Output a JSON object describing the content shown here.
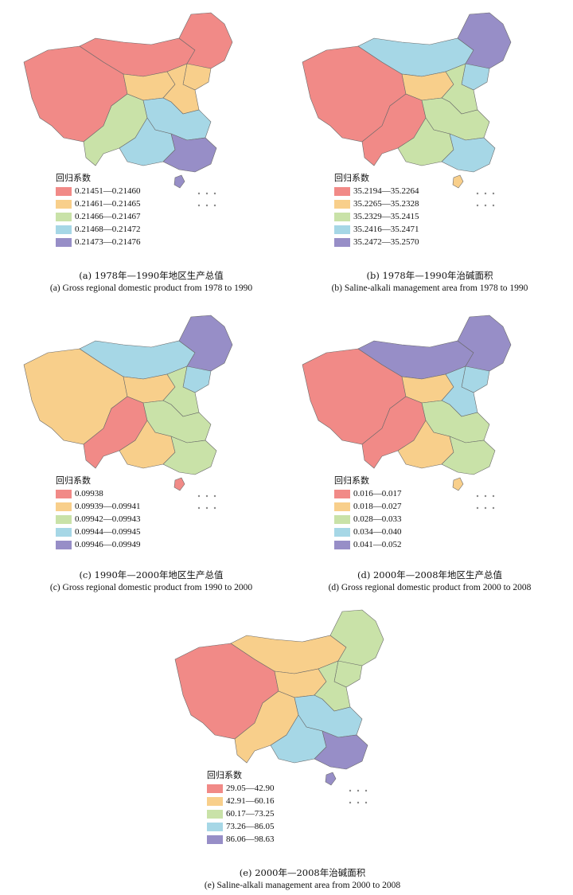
{
  "palette": {
    "class1": "#f18a87",
    "class2": "#f8cf8b",
    "class3": "#c9e2a8",
    "class4": "#a6d7e6",
    "class5": "#978ec7"
  },
  "panels": [
    {
      "id": "a",
      "legend_title": "回归系数",
      "legend": [
        "0.21451—0.21460",
        "0.21461—0.21465",
        "0.21466—0.21467",
        "0.21468—0.21472",
        "0.21473—0.21476"
      ],
      "caption_cn": "(a) 1978年—1990年地区生产总值",
      "caption_en": "(a) Gross regional domestic product from 1978 to 1990",
      "regions": {
        "west": 1,
        "north": 1,
        "northeast": 1,
        "northeast_south": 2,
        "north_central": 2,
        "central_north": 2,
        "southwest": 3,
        "east_central": 4,
        "south": 4,
        "southeast": 5,
        "island": 5
      }
    },
    {
      "id": "b",
      "legend_title": "回归系数",
      "legend": [
        "35.2194—35.2264",
        "35.2265—35.2328",
        "35.2329—35.2415",
        "35.2416—35.2471",
        "35.2472—35.2570"
      ],
      "caption_cn": "(b) 1978年—1990年治碱面积",
      "caption_en": "(b) Saline-alkali management area from 1978 to 1990",
      "regions": {
        "west": 1,
        "north": 4,
        "northeast": 5,
        "northeast_south": 4,
        "north_central": 2,
        "central_north": 3,
        "southwest": 1,
        "east_central": 3,
        "south": 3,
        "southeast": 4,
        "island": 2
      }
    },
    {
      "id": "c",
      "legend_title": "回归系数",
      "legend": [
        "0.09938",
        "0.09939—0.09941",
        "0.09942—0.09943",
        "0.09944—0.09945",
        "0.09946—0.09949"
      ],
      "caption_cn": "(c) 1990年—2000年地区生产总值",
      "caption_en": "(c) Gross regional domestic product from 1990 to 2000",
      "regions": {
        "west": 2,
        "north": 4,
        "northeast": 5,
        "northeast_south": 4,
        "north_central": 2,
        "central_north": 3,
        "southwest": 1,
        "east_central": 3,
        "south": 2,
        "southeast": 3,
        "island": 1
      }
    },
    {
      "id": "d",
      "legend_title": "回归系数",
      "legend": [
        "0.016—0.017",
        "0.018—0.027",
        "0.028—0.033",
        "0.034—0.040",
        "0.041—0.052"
      ],
      "caption_cn": "(d) 2000年—2008年地区生产总值",
      "caption_en": "(d) Gross regional domestic product from 2000 to 2008",
      "regions": {
        "west": 1,
        "north": 5,
        "northeast": 5,
        "northeast_south": 4,
        "north_central": 2,
        "central_north": 4,
        "southwest": 1,
        "east_central": 3,
        "south": 2,
        "southeast": 3,
        "island": 2
      }
    },
    {
      "id": "e",
      "legend_title": "回归系数",
      "legend": [
        "29.05—42.90",
        "42.91—60.16",
        "60.17—73.25",
        "73.26—86.05",
        "86.06—98.63"
      ],
      "caption_cn": "(e) 2000年—2008年治碱面积",
      "caption_en": "(e) Saline-alkali management area from 2000 to 2008",
      "regions": {
        "west": 1,
        "north": 2,
        "northeast": 3,
        "northeast_south": 3,
        "north_central": 2,
        "central_north": 3,
        "southwest": 2,
        "east_central": 4,
        "south": 4,
        "southeast": 5,
        "island": 5
      }
    }
  ]
}
